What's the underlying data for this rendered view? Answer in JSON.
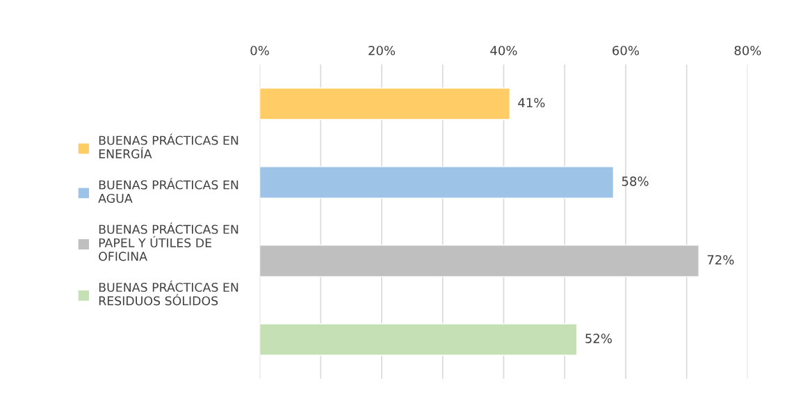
{
  "chart_data": {
    "type": "bar",
    "orientation": "horizontal",
    "categories": [
      null,
      null,
      null,
      null
    ],
    "series": [
      {
        "name": "BUENAS PRÁCTICAS EN ENERGÍA",
        "color": "#ffcc66",
        "values": [
          41,
          null,
          null,
          null
        ],
        "value_labels": [
          "41%",
          null,
          null,
          null
        ]
      },
      {
        "name": "BUENAS PRÁCTICAS EN AGUA",
        "color": "#9dc3e6",
        "values": [
          null,
          58,
          null,
          null
        ],
        "value_labels": [
          null,
          "58%",
          null,
          null
        ]
      },
      {
        "name": "BUENAS PRÁCTICAS EN PAPEL Y ÚTILES DE OFICINA",
        "color": "#bfbfbf",
        "values": [
          null,
          null,
          72,
          null
        ],
        "value_labels": [
          null,
          null,
          "72%",
          null
        ]
      },
      {
        "name": "BUENAS PRÁCTICAS EN RESIDUOS SÓLIDOS",
        "color": "#c5e0b4",
        "values": [
          null,
          null,
          null,
          52
        ],
        "value_labels": [
          null,
          null,
          null,
          "52%"
        ]
      }
    ],
    "xlim": [
      0,
      80
    ],
    "xticks": [
      {
        "value": 0,
        "label": "0%"
      },
      {
        "value": 10,
        "label": null
      },
      {
        "value": 20,
        "label": "20%"
      },
      {
        "value": 30,
        "label": null
      },
      {
        "value": 40,
        "label": "40%"
      },
      {
        "value": 50,
        "label": null
      },
      {
        "value": 60,
        "label": "60%"
      },
      {
        "value": 70,
        "label": null
      },
      {
        "value": 80,
        "label": "80%"
      }
    ],
    "grid": "x",
    "legend": "left",
    "tick_labels": "x"
  }
}
